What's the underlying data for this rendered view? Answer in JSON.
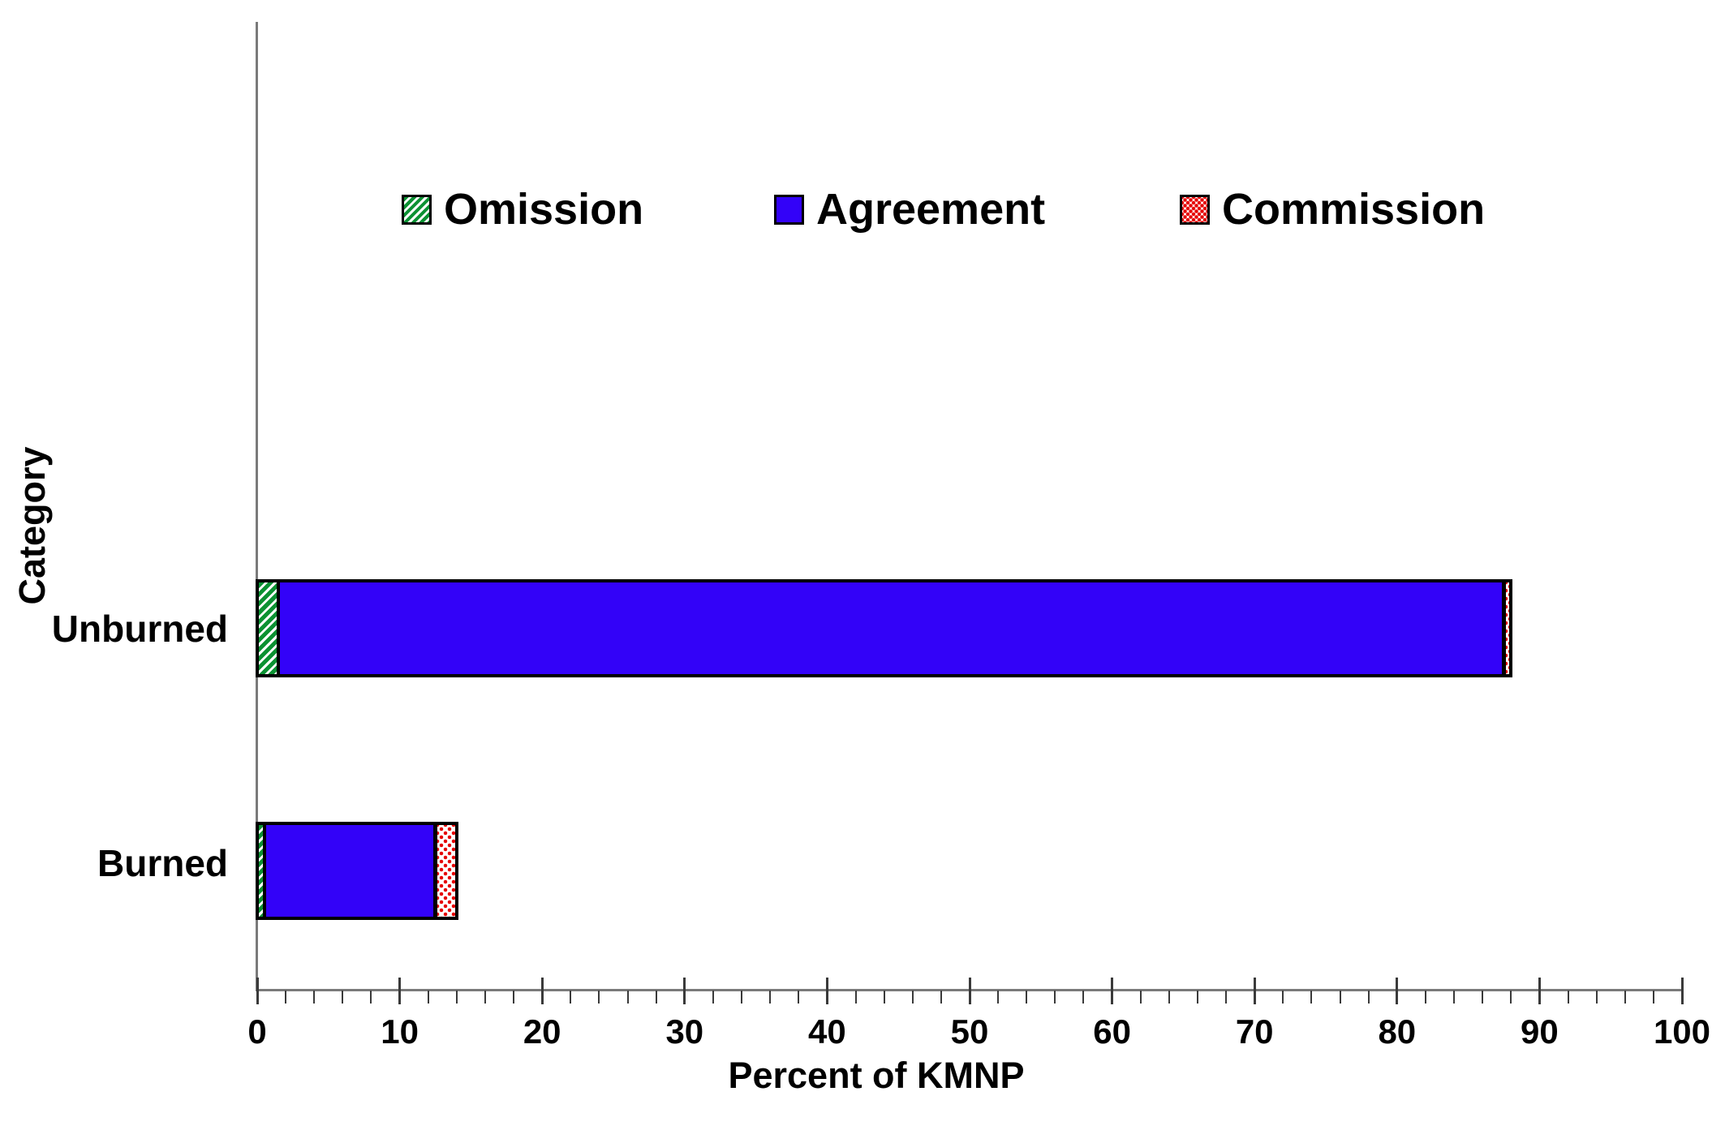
{
  "chart_data": {
    "type": "bar",
    "orientation": "horizontal",
    "stacked": true,
    "title": "",
    "xlabel": "Percent of KMNP",
    "ylabel": "Category",
    "categories": [
      "Unburned",
      "Burned"
    ],
    "series": [
      {
        "name": "Omission",
        "pattern": "diagonal-hatch",
        "color": "#0b9132",
        "values": [
          1.5,
          0.5
        ]
      },
      {
        "name": "Agreement",
        "pattern": "solid",
        "color": "#3302f8",
        "values": [
          86,
          12
        ]
      },
      {
        "name": "Commission",
        "pattern": "dots",
        "color": "#e60000",
        "values": [
          0.5,
          1.5
        ]
      }
    ],
    "xlim": [
      0,
      100
    ],
    "x_major_ticks": [
      0,
      10,
      20,
      30,
      40,
      50,
      60,
      70,
      80,
      90,
      100
    ],
    "x_minor_tick_step": 2,
    "legend_position": "top-center",
    "grid": false
  },
  "colors": {
    "background": "#ffffff",
    "axis_line": "#7a7a7a",
    "tick_mark": "#3a3a3a",
    "bar_border": "#000000",
    "text": "#000000"
  }
}
